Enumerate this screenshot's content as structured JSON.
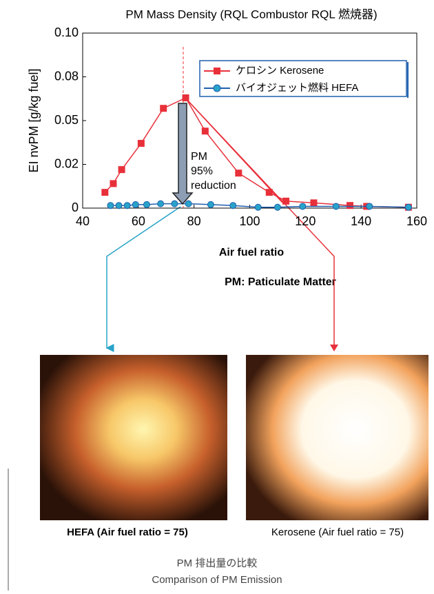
{
  "chart_data": {
    "type": "line",
    "title": "PM Mass Density (RQL Combustor RQL 燃焼器)",
    "xlabel": "Air fuel ratio",
    "ylabel": "EI nvPM [g/kg fuel]",
    "note": "PM: Paticulate Matter",
    "annotation": [
      "PM",
      "95%",
      "reduction"
    ],
    "xlim": [
      40,
      160
    ],
    "xticks": [
      40,
      60,
      80,
      100,
      120,
      140,
      160
    ],
    "ylim": [
      0,
      0.1
    ],
    "yticks": [
      0,
      {
        "value": 0.025,
        "label": "0.02"
      },
      0.05,
      {
        "value": 0.075,
        "label": "0.08"
      },
      {
        "value": 0.1,
        "label": "0.10"
      }
    ],
    "legend": "upper right",
    "series": [
      {
        "name": "ケロシン Kerosene",
        "color": "#e8303a",
        "marker": "square",
        "x": [
          48,
          51,
          54,
          61,
          69,
          77,
          84,
          96,
          107,
          113,
          123,
          136,
          142,
          157
        ],
        "values": [
          0.009,
          0.014,
          0.022,
          0.037,
          0.057,
          0.063,
          0.044,
          0.02,
          0.009,
          0.004,
          0.003,
          0.0015,
          0.001,
          0.0005
        ]
      },
      {
        "name": "バイオジェット燃料 HEFA",
        "color": "#1f5fae",
        "marker": "circle",
        "x": [
          50,
          53,
          56,
          59,
          63,
          68,
          73,
          78,
          86,
          94,
          103,
          110,
          119,
          131,
          143,
          157
        ],
        "values": [
          0.0015,
          0.0015,
          0.0015,
          0.002,
          0.002,
          0.0025,
          0.0025,
          0.0025,
          0.002,
          0.0015,
          0.0005,
          0.0005,
          0.001,
          0.001,
          0.001,
          0.0005
        ]
      }
    ]
  },
  "images": [
    {
      "caption": "HEFA (Air fuel ratio = 75)"
    },
    {
      "caption": "Kerosene (Air fuel ratio = 75)"
    }
  ],
  "caption": [
    "PM 排出量の比較",
    "Comparison of PM Emission"
  ]
}
